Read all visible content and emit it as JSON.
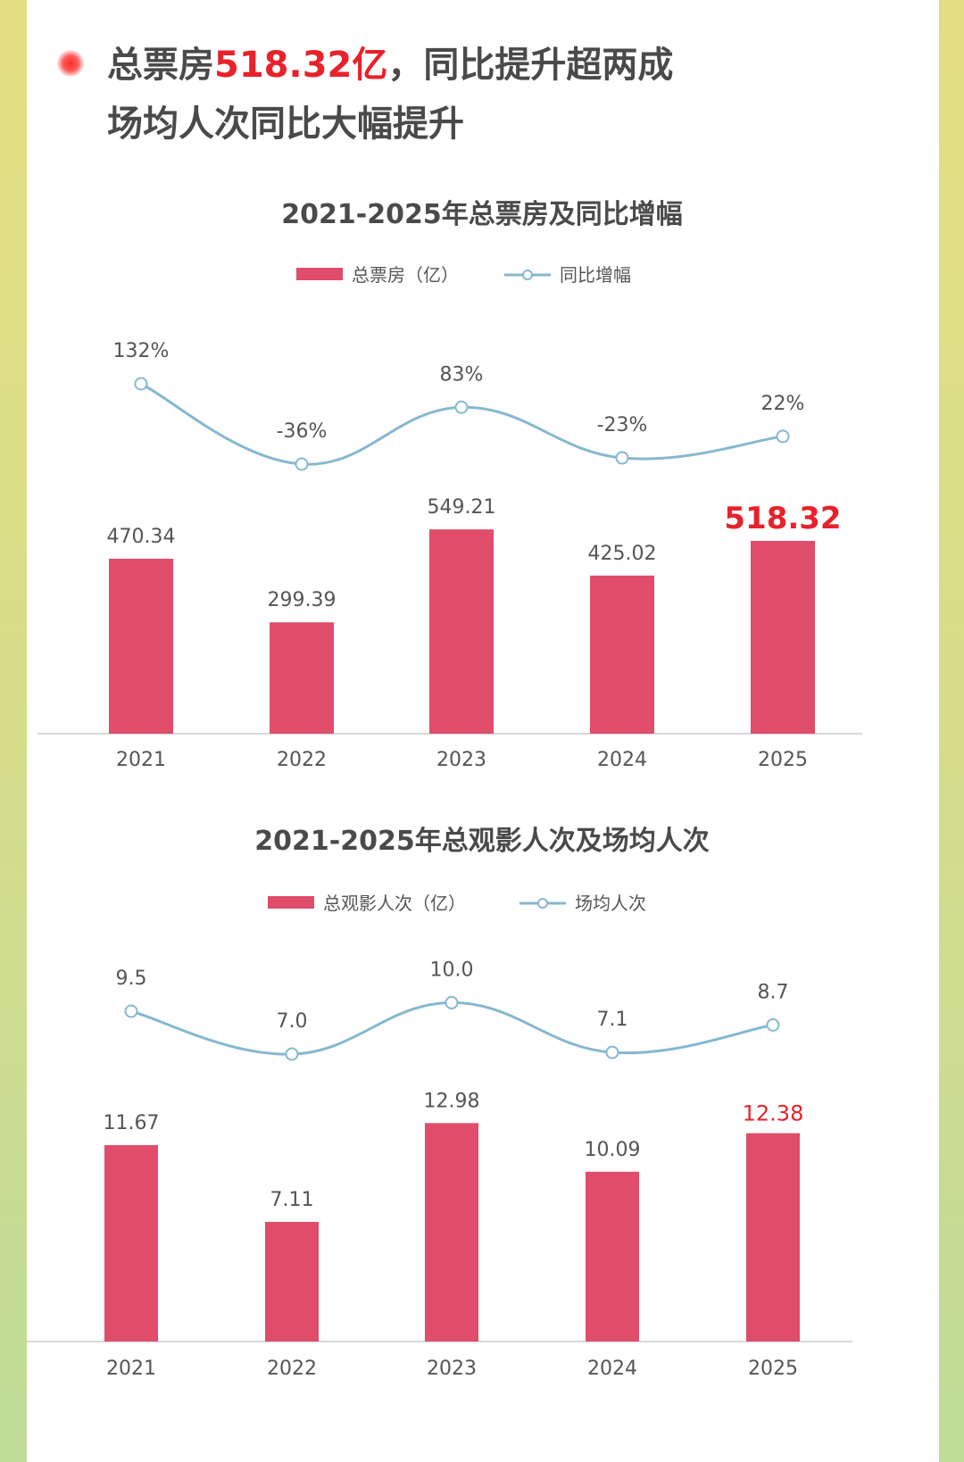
{
  "headline": {
    "prefix": "总票房",
    "highlight": "518.32亿",
    "suffix": "，同比提升超两成",
    "line2": "场均人次同比大幅提升"
  },
  "colors": {
    "bar": "#df4d6a",
    "line": "#86b8cf",
    "highlight": "#e8212a",
    "text": "#555555"
  },
  "chart_data": [
    {
      "type": "bar",
      "title": "2021-2025年总票房及同比增幅",
      "categories": [
        "2021",
        "2022",
        "2023",
        "2024",
        "2025"
      ],
      "series": [
        {
          "name": "总票房（亿）",
          "type": "bar",
          "values": [
            470.34,
            299.39,
            549.21,
            425.02,
            518.32
          ],
          "labels": [
            "470.34",
            "299.39",
            "549.21",
            "425.02",
            "518.32"
          ]
        },
        {
          "name": "同比增幅",
          "type": "line",
          "values": [
            132,
            -36,
            83,
            -23,
            22
          ],
          "labels": [
            "132%",
            "-36%",
            "83%",
            "-23%",
            "22%"
          ]
        }
      ],
      "highlight_last": true,
      "legend": "top-center",
      "grid": false
    },
    {
      "type": "bar",
      "title": "2021-2025年总观影人次及场均人次",
      "categories": [
        "2021",
        "2022",
        "2023",
        "2024",
        "2025"
      ],
      "series": [
        {
          "name": "总观影人次（亿）",
          "type": "bar",
          "values": [
            11.67,
            7.11,
            12.98,
            10.09,
            12.38
          ],
          "labels": [
            "11.67",
            "7.11",
            "12.98",
            "10.09",
            "12.38"
          ]
        },
        {
          "name": "场均人次",
          "type": "line",
          "values": [
            9.5,
            7.0,
            10.0,
            7.1,
            8.7
          ],
          "labels": [
            "9.5",
            "7.0",
            "10.0",
            "7.1",
            "8.7"
          ]
        }
      ],
      "highlight_last": true,
      "legend": "top-center",
      "grid": false
    }
  ]
}
